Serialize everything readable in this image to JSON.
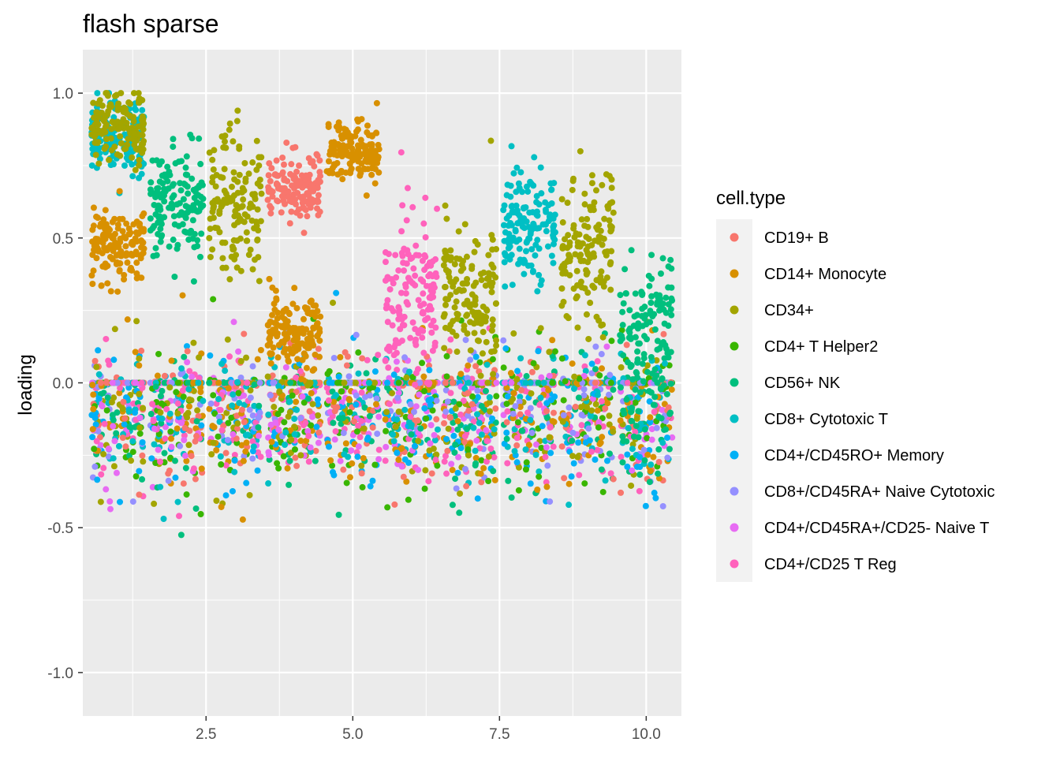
{
  "chart_data": {
    "type": "scatter",
    "title": "flash sparse",
    "xlabel": "",
    "ylabel": "loading",
    "xlim": [
      0.4,
      10.6
    ],
    "ylim": [
      -1.15,
      1.15
    ],
    "x_ticks": [
      2.5,
      5.0,
      7.5,
      10.0
    ],
    "x_tick_labels": [
      "2.5",
      "5.0",
      "7.5",
      "10.0"
    ],
    "y_ticks": [
      -1.0,
      -0.5,
      0.0,
      0.5,
      1.0
    ],
    "y_tick_labels": [
      "-1.0",
      "-0.5",
      "0.0",
      "0.5",
      "1.0"
    ],
    "grid": true,
    "panel_background": "#ebebeb",
    "legend": {
      "title": "cell.type",
      "position": "right",
      "entries": [
        {
          "label": "CD19+ B",
          "color": "#F8766D"
        },
        {
          "label": "CD14+ Monocyte",
          "color": "#D89000"
        },
        {
          "label": "CD34+",
          "color": "#A3A500"
        },
        {
          "label": "CD4+ T Helper2",
          "color": "#39B600"
        },
        {
          "label": "CD56+ NK",
          "color": "#00BF7D"
        },
        {
          "label": "CD8+ Cytotoxic T",
          "color": "#00BFC4"
        },
        {
          "label": "CD4+/CD45RO+ Memory",
          "color": "#00B0F6"
        },
        {
          "label": "CD8+/CD45RA+ Naive Cytotoxic",
          "color": "#9590FF"
        },
        {
          "label": "CD4+/CD45RA+/CD25- Naive T",
          "color": "#E76BF3"
        },
        {
          "label": "CD4+/CD25 T Reg",
          "color": "#FF62BC"
        }
      ]
    },
    "factors": [
      {
        "factor": 1,
        "main": [
          {
            "series": 5,
            "y": 0.85
          },
          {
            "series": 1,
            "y": 0.48
          },
          {
            "series": 2,
            "y": 0.88
          }
        ],
        "spread": 0.13
      },
      {
        "factor": 2,
        "main": [
          {
            "series": 4,
            "y": 0.62
          }
        ],
        "spread": 0.18
      },
      {
        "factor": 3,
        "main": [
          {
            "series": 2,
            "y": 0.6
          }
        ],
        "spread": 0.28
      },
      {
        "factor": 4,
        "main": [
          {
            "series": 0,
            "y": 0.68
          },
          {
            "series": 1,
            "y": 0.18
          }
        ],
        "spread": 0.12
      },
      {
        "factor": 5,
        "main": [
          {
            "series": 1,
            "y": 0.8
          }
        ],
        "spread": 0.1
      },
      {
        "factor": 6,
        "main": [
          {
            "series": 9,
            "y": 0.3
          }
        ],
        "spread": 0.3
      },
      {
        "factor": 7,
        "main": [
          {
            "series": 2,
            "y": 0.3
          }
        ],
        "spread": 0.25
      },
      {
        "factor": 8,
        "main": [
          {
            "series": 5,
            "y": 0.55
          }
        ],
        "spread": 0.2
      },
      {
        "factor": 9,
        "main": [
          {
            "series": 2,
            "y": 0.45
          }
        ],
        "spread": 0.25
      },
      {
        "factor": 10,
        "main": [
          {
            "series": 4,
            "y": 0.15
          }
        ],
        "spread": 0.35
      }
    ]
  }
}
